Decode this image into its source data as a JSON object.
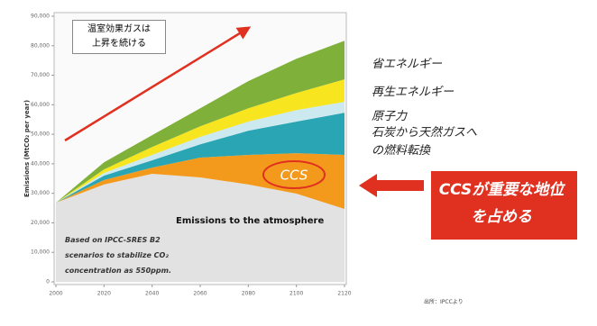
{
  "chart_data": {
    "type": "stacked_area",
    "ylabel": "Emissions (MtCO₂ per year)",
    "x": [
      2000,
      2020,
      2040,
      2060,
      2080,
      2100,
      2120
    ],
    "xlim": [
      2000,
      2120
    ],
    "xticks": [
      2000,
      2020,
      2040,
      2060,
      2080,
      2100,
      2120
    ],
    "ylim": [
      0,
      90000
    ],
    "yticks": [
      0,
      {
        "value": 10000,
        "label": "10,000"
      },
      {
        "value": 20000,
        "label": "20,000"
      },
      {
        "value": 30000,
        "label": "30,000"
      },
      {
        "value": 40000,
        "label": "40,000"
      },
      {
        "value": 50000,
        "label": "50,000"
      },
      {
        "value": 60000,
        "label": "60,000"
      },
      {
        "value": 70000,
        "label": "70,000"
      },
      {
        "value": 80000,
        "label": "80,000"
      },
      {
        "value": 90000,
        "label": "90,000"
      }
    ],
    "series": [
      {
        "name": "Emissions to the atmosphere",
        "color": "#e2e2e2",
        "values": [
          26800,
          33000,
          36600,
          35400,
          33000,
          29900,
          24700
        ]
      },
      {
        "name": "CCS",
        "color": "#f39a1d",
        "values": [
          0,
          1500,
          2100,
          6700,
          10000,
          13700,
          18300
        ]
      },
      {
        "name": "石炭から天然ガスへの燃料転換",
        "color": "#2aa5b3",
        "values": [
          0,
          1500,
          2500,
          4500,
          8200,
          10700,
          14300
        ]
      },
      {
        "name": "原子力",
        "color": "#cde9f0",
        "values": [
          0,
          900,
          1800,
          2500,
          3100,
          3900,
          3700
        ]
      },
      {
        "name": "再生エネルギー",
        "color": "#f7e51f",
        "values": [
          0,
          1200,
          2700,
          3600,
          4500,
          5800,
          7600
        ]
      },
      {
        "name": "省エネルギー",
        "color": "#7fb03a",
        "values": [
          0,
          2400,
          4000,
          6100,
          9200,
          11600,
          13100
        ]
      }
    ],
    "annotations": {
      "trend": "温室効果ガスは上昇を続ける",
      "scenario": "Based on IPCC-SRES B2 scenarios to stabilize CO₂ concentration as 550ppm.",
      "callout": "CCSが重要な地位を占める",
      "source": "出所：IPCCより"
    }
  }
}
